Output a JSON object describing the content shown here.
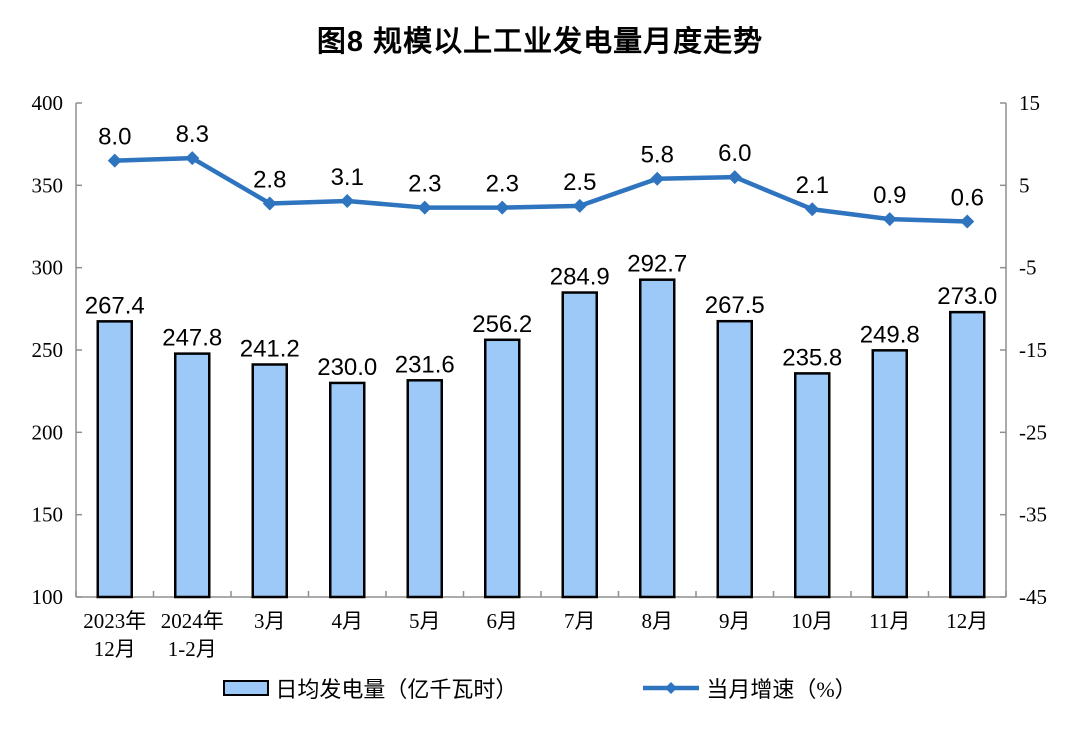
{
  "chart_data": {
    "type": "bar",
    "title": "图8 规模以上工业发电量月度走势",
    "categories": [
      "2023年\n12月",
      "2024年\n1-2月",
      "3月",
      "4月",
      "5月",
      "6月",
      "7月",
      "8月",
      "9月",
      "10月",
      "11月",
      "12月"
    ],
    "series": [
      {
        "name": "日均发电量（亿千瓦时）",
        "type": "bar",
        "axis": "left",
        "values": [
          267.4,
          247.8,
          241.2,
          230.0,
          231.6,
          256.2,
          284.9,
          292.7,
          267.5,
          235.8,
          249.8,
          273.0
        ]
      },
      {
        "name": "当月增速（%）",
        "type": "line",
        "axis": "right",
        "values": [
          8.0,
          8.3,
          2.8,
          3.1,
          2.3,
          2.3,
          2.5,
          5.8,
          6.0,
          2.1,
          0.9,
          0.6
        ]
      }
    ],
    "left_axis": {
      "min": 100,
      "max": 400,
      "ticks": [
        400,
        350,
        300,
        250,
        200,
        150,
        100
      ]
    },
    "right_axis": {
      "min": -45,
      "max": 15,
      "ticks": [
        15,
        5,
        -5,
        -15,
        -25,
        -35,
        -45
      ]
    },
    "grid": false,
    "legend_position": "bottom"
  },
  "colors": {
    "bar_fill": "#9DC9F8",
    "bar_border": "#000000",
    "line": "#2E74BE",
    "axis": "#8F8F8F",
    "text": "#000000"
  }
}
